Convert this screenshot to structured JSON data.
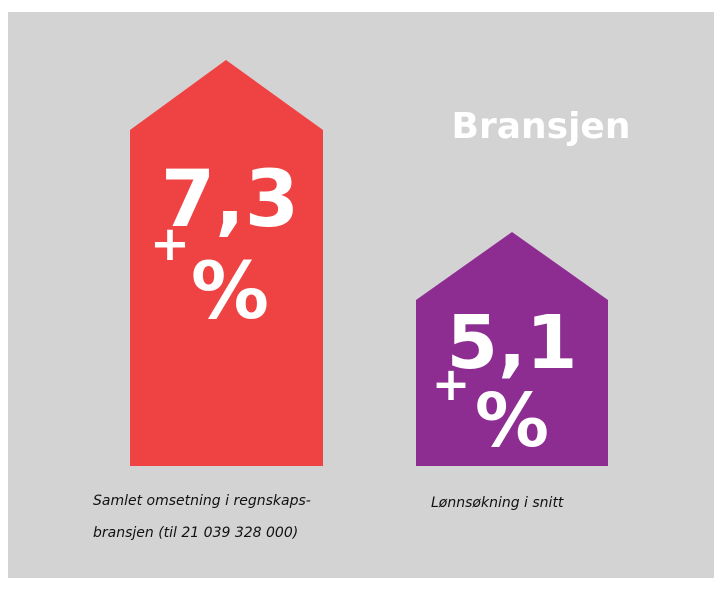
{
  "title": "Bransjen",
  "items": [
    {
      "value": "7,3",
      "sign": "+",
      "unit": "%",
      "caption": [
        "Samlet omsetning i regnskaps-",
        "bransjen (til 21 039 328 000)"
      ]
    },
    {
      "value": "5,1",
      "sign": "+",
      "unit": "%",
      "caption": [
        "Lønnsøkning i snitt"
      ]
    }
  ]
}
